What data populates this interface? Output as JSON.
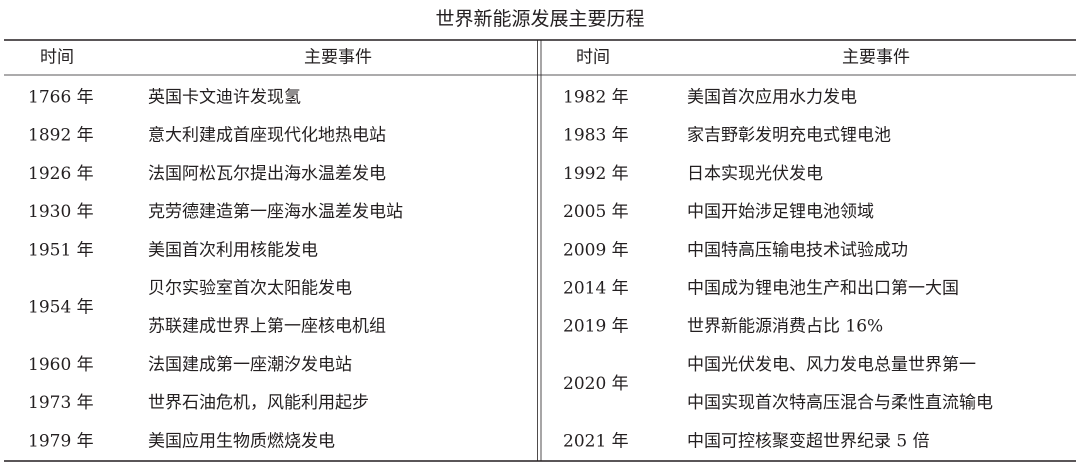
{
  "title": "世界新能源发展主要历程",
  "tables": [
    {
      "headers": [
        "时间",
        "主要事件"
      ],
      "rows": [
        {
          "year": "1766 年",
          "events": [
            "英国卡文迪许发现氢"
          ]
        },
        {
          "year": "1892 年",
          "events": [
            "意大利建成首座现代化地热电站"
          ]
        },
        {
          "year": "1926 年",
          "events": [
            "法国阿松瓦尔提出海水温差发电"
          ]
        },
        {
          "year": "1930 年",
          "events": [
            "克劳德建造第一座海水温差发电站"
          ]
        },
        {
          "year": "1951 年",
          "events": [
            "美国首次利用核能发电"
          ]
        },
        {
          "year": "1954 年",
          "events": [
            "贝尔实验室首次太阳能发电",
            "苏联建成世界上第一座核电机组"
          ]
        },
        {
          "year": "1960 年",
          "events": [
            "法国建成第一座潮汐发电站"
          ]
        },
        {
          "year": "1973 年",
          "events": [
            "世界石油危机，风能利用起步"
          ]
        },
        {
          "year": "1979 年",
          "events": [
            "美国应用生物质燃烧发电"
          ]
        }
      ]
    },
    {
      "headers": [
        "时间",
        "主要事件"
      ],
      "rows": [
        {
          "year": "1982 年",
          "events": [
            "美国首次应用水力发电"
          ]
        },
        {
          "year": "1983 年",
          "events": [
            "家吉野彰发明充电式锂电池"
          ]
        },
        {
          "year": "1992 年",
          "events": [
            "日本实现光伏发电"
          ]
        },
        {
          "year": "2005 年",
          "events": [
            "中国开始涉足锂电池领域"
          ]
        },
        {
          "year": "2009 年",
          "events": [
            "中国特高压输电技术试验成功"
          ]
        },
        {
          "year": "2014 年",
          "events": [
            "中国成为锂电池生产和出口第一大国"
          ]
        },
        {
          "year": "2019 年",
          "events": [
            "世界新能源消费占比 16%"
          ]
        },
        {
          "year": "2020 年",
          "events": [
            "中国光伏发电、风力发电总量世界第一",
            "中国实现首次特高压混合与柔性直流输电"
          ]
        },
        {
          "year": "2021 年",
          "events": [
            "中国可控核聚变超世界纪录 5 倍"
          ]
        }
      ]
    }
  ]
}
